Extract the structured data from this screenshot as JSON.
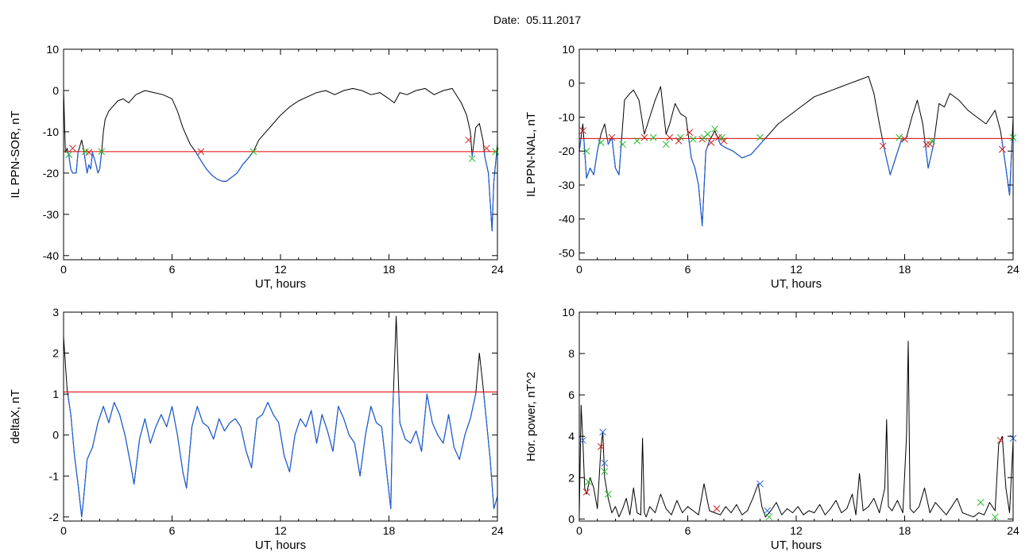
{
  "page": {
    "title": "Date:  05.11.2017"
  },
  "colors": {
    "signal": "#000000",
    "below_threshold": "#1f5fd6",
    "threshold": "#e00000",
    "marker_red": "#d42020",
    "marker_green": "#22bb22",
    "marker_blue": "#3070e0"
  },
  "chart_data": [
    {
      "id": "il-ppn-sor",
      "type": "line",
      "title": "",
      "xlabel": "UT, hours",
      "ylabel": "IL PPN-SOR, nT",
      "xlim": [
        0,
        24
      ],
      "ylim": [
        -41,
        10
      ],
      "xticks": [
        0,
        6,
        12,
        18,
        24
      ],
      "yticks": [
        10,
        0,
        -10,
        -20,
        -30,
        -40
      ],
      "grid": false,
      "threshold": -14.8,
      "series": [
        {
          "color": "black",
          "x": [
            0,
            0.1,
            0.2,
            0.3,
            0.4,
            0.5,
            0.6,
            0.7,
            0.8,
            1.0,
            1.1,
            1.2,
            1.3,
            1.4,
            1.5,
            1.6,
            1.8,
            1.9,
            2.0,
            2.1,
            2.2,
            2.3,
            2.5,
            2.7,
            3.0,
            3.3,
            3.6,
            4.0,
            4.5,
            5.0,
            5.5,
            6.0,
            6.3,
            6.6,
            7.0,
            7.3,
            7.6,
            7.9,
            8.2,
            8.5,
            8.8,
            9.0,
            9.3,
            9.6,
            9.9,
            10.2,
            10.5,
            10.8,
            11.2,
            11.6,
            12.0,
            12.5,
            13.0,
            13.5,
            14.0,
            14.5,
            15.0,
            15.5,
            16.0,
            16.5,
            17.0,
            17.5,
            18.0,
            18.3,
            18.6,
            19.0,
            19.5,
            20.0,
            20.5,
            21.0,
            21.5,
            22.0,
            22.3,
            22.5,
            22.6,
            22.8,
            23.0,
            23.1,
            23.2,
            23.3,
            23.5,
            23.6,
            23.7,
            23.8,
            24.0
          ],
          "y": [
            0,
            -15,
            -14,
            -16,
            -19,
            -20,
            -20,
            -20,
            -15,
            -12,
            -14,
            -17,
            -20,
            -18,
            -19,
            -15,
            -18,
            -20,
            -19,
            -15,
            -10,
            -7,
            -5,
            -4,
            -2.5,
            -2,
            -3,
            -1,
            0,
            -0.5,
            -1,
            -2,
            -5,
            -9,
            -13,
            -14.8,
            -17,
            -19,
            -20.5,
            -21.5,
            -22,
            -22,
            -21,
            -20,
            -18,
            -16.5,
            -14.8,
            -12,
            -10,
            -8,
            -6,
            -4,
            -2.5,
            -1.5,
            -0.5,
            0,
            -1,
            0,
            0.5,
            0,
            -1,
            -0.5,
            -2,
            -3,
            -0.5,
            -1,
            0,
            0.5,
            -1,
            0,
            0.5,
            -3,
            -6,
            -10,
            -16,
            -9,
            -8,
            -10,
            -12,
            -16,
            -20,
            -27,
            -34,
            -22,
            -13
          ]
        }
      ],
      "markers": [
        {
          "color": "red",
          "x": [
            0.5,
            1.4,
            7.6,
            22.4,
            23.4
          ],
          "y": [
            -14.0,
            -15.0,
            -14.8,
            -12.0,
            -14.0
          ]
        },
        {
          "color": "green",
          "x": [
            0.3,
            1.2,
            2.1,
            10.5,
            22.6,
            23.9
          ],
          "y": [
            -15.5,
            -14.8,
            -14.8,
            -14.8,
            -16.5,
            -14.8
          ]
        }
      ]
    },
    {
      "id": "il-ppn-nal",
      "type": "line",
      "title": "",
      "xlabel": "UT, hours",
      "ylabel": "IL PPN-NAL, nT",
      "xlim": [
        0,
        24
      ],
      "ylim": [
        -52,
        10
      ],
      "xticks": [
        0,
        6,
        12,
        18,
        24
      ],
      "yticks": [
        10,
        0,
        -10,
        -20,
        -30,
        -40,
        -50
      ],
      "grid": false,
      "threshold": -16.3,
      "series": [
        {
          "color": "black",
          "x": [
            0,
            0.2,
            0.4,
            0.6,
            0.8,
            1.0,
            1.2,
            1.4,
            1.6,
            1.8,
            2.0,
            2.2,
            2.5,
            2.8,
            3.0,
            3.3,
            3.6,
            3.9,
            4.2,
            4.5,
            4.8,
            5.0,
            5.3,
            5.6,
            5.9,
            6.2,
            6.4,
            6.6,
            6.8,
            7.0,
            7.2,
            7.5,
            7.8,
            8.1,
            8.5,
            9.0,
            9.5,
            10.0,
            10.5,
            11.0,
            11.5,
            12.0,
            12.5,
            13.0,
            13.5,
            14.0,
            14.5,
            15.0,
            15.5,
            16.0,
            16.3,
            16.6,
            16.9,
            17.2,
            17.5,
            17.8,
            18.1,
            18.4,
            18.7,
            19.0,
            19.3,
            19.6,
            19.9,
            20.2,
            20.5,
            21.0,
            21.5,
            22.0,
            22.5,
            23.0,
            23.3,
            23.6,
            23.8,
            24.0
          ],
          "y": [
            -20,
            -12,
            -28,
            -25,
            -27,
            -20,
            -15,
            -12,
            -18,
            -16,
            -25,
            -27,
            -5,
            -3,
            -2,
            -5,
            -15,
            -10,
            -5,
            -1,
            -15,
            -12,
            -6,
            -9,
            -10,
            -22,
            -25,
            -30,
            -42,
            -20,
            -17,
            -14,
            -18,
            -19,
            -20,
            -22,
            -21,
            -18,
            -15,
            -12,
            -10,
            -8,
            -6,
            -4,
            -3,
            -2,
            -1,
            0,
            1,
            2,
            -3,
            -12,
            -20,
            -27,
            -22,
            -17,
            -16,
            -10,
            -5,
            -12,
            -25,
            -18,
            -6,
            -7,
            -3,
            -5,
            -8,
            -10,
            -12,
            -8,
            -14,
            -25,
            -33,
            -10
          ]
        }
      ],
      "markers": [
        {
          "color": "red",
          "x": [
            0.2,
            1.8,
            3.6,
            5.0,
            5.5,
            6.1,
            6.8,
            7.3,
            7.7,
            8.0,
            16.8,
            18.0,
            19.2,
            19.4,
            23.4
          ],
          "y": [
            -14.0,
            -16.0,
            -16.0,
            -16.0,
            -17.0,
            -14.5,
            -16.5,
            -17.5,
            -16.0,
            -17.0,
            -18.5,
            -16.5,
            -18.0,
            -18.0,
            -19.5
          ]
        },
        {
          "color": "green",
          "x": [
            0.4,
            1.2,
            2.4,
            3.2,
            4.1,
            4.8,
            5.6,
            6.3,
            6.9,
            7.1,
            7.5,
            7.9,
            10.0,
            17.7,
            19.5,
            24.0
          ],
          "y": [
            -20.0,
            -17.5,
            -18.0,
            -17.0,
            -16.0,
            -18.0,
            -16.0,
            -16.5,
            -16.0,
            -15.0,
            -13.5,
            -16.0,
            -16.0,
            -16.0,
            -17.0,
            -16.0
          ]
        }
      ]
    },
    {
      "id": "delta-x",
      "type": "line",
      "title": "",
      "xlabel": "UT, hours",
      "ylabel": "deltaX, nT",
      "xlim": [
        0,
        24
      ],
      "ylim": [
        -2.1,
        3
      ],
      "xticks": [
        0,
        6,
        12,
        18,
        24
      ],
      "yticks": [
        3,
        2,
        1,
        0,
        -1,
        -2
      ],
      "grid": false,
      "threshold": 1.05,
      "series": [
        {
          "color": "black",
          "x": [
            0,
            0.2,
            0.4,
            0.6,
            0.8,
            1.0,
            1.1,
            1.3,
            1.6,
            1.9,
            2.2,
            2.5,
            2.8,
            3.1,
            3.4,
            3.7,
            3.9,
            4.2,
            4.5,
            4.8,
            5.1,
            5.4,
            5.7,
            6.0,
            6.3,
            6.6,
            6.8,
            7.1,
            7.4,
            7.7,
            8.0,
            8.3,
            8.6,
            8.9,
            9.2,
            9.5,
            9.8,
            10.1,
            10.4,
            10.7,
            11.0,
            11.3,
            11.6,
            11.9,
            12.2,
            12.5,
            12.8,
            13.1,
            13.4,
            13.7,
            14.0,
            14.3,
            14.6,
            14.9,
            15.2,
            15.5,
            15.8,
            16.1,
            16.4,
            16.7,
            17.0,
            17.3,
            17.6,
            17.9,
            18.1,
            18.2,
            18.4,
            18.6,
            18.9,
            19.2,
            19.5,
            19.8,
            20.1,
            20.4,
            20.7,
            21.0,
            21.3,
            21.6,
            21.9,
            22.2,
            22.5,
            22.8,
            23.0,
            23.2,
            23.4,
            23.6,
            23.8,
            24.0
          ],
          "y": [
            2.4,
            1.1,
            0.5,
            -0.5,
            -1.2,
            -2.0,
            -1.6,
            -0.6,
            -0.3,
            0.3,
            0.7,
            0.3,
            0.8,
            0.5,
            0.0,
            -0.7,
            -1.2,
            -0.1,
            0.4,
            -0.2,
            0.2,
            0.5,
            0.2,
            0.7,
            0.0,
            -0.9,
            -1.3,
            0.2,
            0.7,
            0.3,
            0.2,
            -0.1,
            0.4,
            0.1,
            0.3,
            0.4,
            0.2,
            -0.4,
            -0.8,
            0.4,
            0.5,
            0.8,
            0.5,
            0.3,
            -0.5,
            -0.9,
            0.0,
            0.4,
            0.2,
            0.6,
            -0.2,
            0.5,
            0.1,
            -0.4,
            0.7,
            0.4,
            0.0,
            -0.2,
            -1.0,
            0.0,
            0.7,
            0.3,
            0.2,
            -1.0,
            -1.8,
            0.5,
            2.9,
            0.3,
            -0.1,
            -0.2,
            0.1,
            -0.4,
            1.0,
            0.3,
            0.0,
            -0.2,
            0.5,
            -0.3,
            -0.6,
            0.0,
            0.4,
            1.0,
            2.0,
            1.2,
            0.3,
            -0.6,
            -1.8,
            -1.5
          ]
        }
      ],
      "markers": []
    },
    {
      "id": "hor-power",
      "type": "line",
      "title": "",
      "xlabel": "UT, hours",
      "ylabel": "Hor. power, nT^2",
      "xlim": [
        0,
        24
      ],
      "ylim": [
        -0.1,
        10
      ],
      "xticks": [
        0,
        6,
        12,
        18,
        24
      ],
      "yticks": [
        10,
        8,
        6,
        4,
        2,
        0
      ],
      "grid": false,
      "threshold": null,
      "series": [
        {
          "color": "black",
          "x": [
            0,
            0.1,
            0.2,
            0.3,
            0.4,
            0.6,
            0.8,
            1.0,
            1.2,
            1.3,
            1.4,
            1.6,
            1.8,
            2.0,
            2.2,
            2.4,
            2.6,
            2.8,
            3.0,
            3.2,
            3.4,
            3.5,
            3.6,
            3.7,
            3.9,
            4.2,
            4.5,
            4.8,
            5.1,
            5.4,
            5.7,
            6.0,
            6.3,
            6.6,
            6.9,
            7.2,
            7.5,
            7.8,
            8.1,
            8.4,
            8.7,
            9.0,
            9.3,
            9.6,
            9.9,
            10.1,
            10.3,
            10.6,
            10.9,
            11.2,
            11.5,
            11.8,
            12.1,
            12.4,
            12.7,
            13.0,
            13.3,
            13.6,
            13.9,
            14.2,
            14.5,
            14.8,
            15.1,
            15.3,
            15.5,
            15.7,
            16.0,
            16.3,
            16.6,
            16.9,
            17.0,
            17.1,
            17.3,
            17.6,
            17.9,
            18.1,
            18.2,
            18.3,
            18.5,
            18.8,
            19.1,
            19.4,
            19.7,
            20.0,
            20.3,
            20.6,
            20.9,
            21.2,
            21.5,
            21.8,
            22.1,
            22.4,
            22.7,
            23.0,
            23.2,
            23.4,
            23.6,
            23.8,
            24.0
          ],
          "y": [
            0.2,
            5.5,
            3.8,
            1.5,
            1.2,
            2.0,
            1.5,
            0.5,
            3.5,
            4.2,
            2.0,
            1.0,
            0.3,
            0.6,
            0.1,
            0.5,
            1.0,
            0.2,
            1.5,
            0.3,
            0.2,
            3.9,
            0.3,
            0.1,
            0.6,
            0.3,
            1.2,
            0.5,
            0.2,
            0.9,
            0.3,
            0.6,
            0.4,
            0.2,
            1.7,
            0.4,
            0.3,
            0.2,
            0.6,
            0.3,
            0.7,
            0.2,
            0.4,
            1.0,
            1.7,
            0.6,
            0.1,
            0.4,
            0.8,
            0.2,
            0.5,
            0.3,
            0.6,
            0.2,
            0.4,
            0.3,
            0.7,
            0.2,
            0.5,
            0.9,
            0.3,
            0.5,
            1.2,
            0.2,
            2.2,
            0.4,
            0.6,
            1.0,
            0.3,
            1.5,
            4.8,
            0.6,
            0.4,
            0.9,
            0.3,
            4.0,
            8.6,
            0.5,
            0.3,
            0.6,
            1.5,
            0.3,
            0.8,
            0.5,
            0.2,
            0.6,
            1.0,
            0.3,
            0.2,
            0.1,
            0.3,
            0.2,
            0.8,
            0.4,
            3.6,
            4.0,
            1.5,
            0.3,
            3.8
          ]
        }
      ],
      "markers": [
        {
          "color": "red",
          "x": [
            0.4,
            1.2,
            7.6,
            23.3
          ],
          "y": [
            1.3,
            3.5,
            0.5,
            3.8
          ]
        },
        {
          "color": "green",
          "x": [
            0.5,
            1.4,
            1.6,
            10.5,
            22.2,
            23.0
          ],
          "y": [
            1.8,
            2.3,
            1.2,
            0.1,
            0.8,
            0.1
          ]
        },
        {
          "color": "blue",
          "x": [
            0.2,
            1.3,
            1.4,
            10.0,
            10.4,
            24.0
          ],
          "y": [
            3.8,
            4.2,
            2.7,
            1.7,
            0.4,
            3.9
          ]
        }
      ]
    }
  ]
}
